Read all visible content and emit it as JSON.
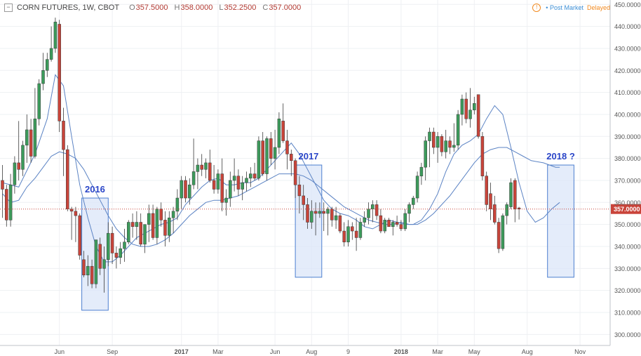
{
  "header": {
    "collapse_symbol": "−",
    "symbol": "CORN FUTURES, 1W, CBOT",
    "open_key": "O",
    "open": "357.5000",
    "high_key": "H",
    "high": "358.0000",
    "low_key": "L",
    "low": "352.2500",
    "close_key": "C",
    "close": "357.0000"
  },
  "status": {
    "info_icon": "alert-circle-icon",
    "info_symbol": "!",
    "post_market": "• Post Market",
    "delayed": "Delayed"
  },
  "colors": {
    "up": "#3c9b5b",
    "down": "#c9443a",
    "ma_line": "#5b83c4",
    "box_fill": "#dbe6f8",
    "box_border": "#4c7fd0",
    "price_tag": "#c9443a",
    "annotation": "#2a45c8"
  },
  "chart_data": {
    "type": "candlestick",
    "ylim": [
      295,
      452
    ],
    "y_ticks": [
      "450.0000",
      "440.0000",
      "430.0000",
      "420.0000",
      "410.0000",
      "400.0000",
      "390.0000",
      "380.0000",
      "370.0000",
      "360.0000",
      "350.0000",
      "340.0000",
      "330.0000",
      "320.0000",
      "310.0000",
      "300.0000"
    ],
    "x_tick_labels": [
      {
        "label": "Jun",
        "week": 14,
        "bold": false
      },
      {
        "label": "Sep",
        "week": 27,
        "bold": false
      },
      {
        "label": "2017",
        "week": 44,
        "bold": true
      },
      {
        "label": "Mar",
        "week": 53,
        "bold": false
      },
      {
        "label": "Jun",
        "week": 67,
        "bold": false
      },
      {
        "label": "Aug",
        "week": 76,
        "bold": false
      },
      {
        "label": "9",
        "week": 85,
        "bold": false
      },
      {
        "label": "2018",
        "week": 98,
        "bold": true
      },
      {
        "label": "Mar",
        "week": 107,
        "bold": false
      },
      {
        "label": "May",
        "week": 116,
        "bold": false
      },
      {
        "label": "Aug",
        "week": 129,
        "bold": false
      },
      {
        "label": "Nov",
        "week": 142,
        "bold": false
      }
    ],
    "last_price": "357.0000",
    "last_price_value": 357,
    "candles": [
      {
        "o": 370,
        "h": 377,
        "l": 353,
        "c": 366
      },
      {
        "o": 366,
        "h": 368,
        "l": 349,
        "c": 352
      },
      {
        "o": 352,
        "h": 373,
        "l": 349,
        "c": 368
      },
      {
        "o": 368,
        "h": 381,
        "l": 364,
        "c": 378
      },
      {
        "o": 378,
        "h": 397,
        "l": 370,
        "c": 375
      },
      {
        "o": 375,
        "h": 388,
        "l": 372,
        "c": 386
      },
      {
        "o": 386,
        "h": 400,
        "l": 378,
        "c": 393
      },
      {
        "o": 393,
        "h": 398,
        "l": 378,
        "c": 381
      },
      {
        "o": 381,
        "h": 412,
        "l": 380,
        "c": 398
      },
      {
        "o": 398,
        "h": 416,
        "l": 395,
        "c": 414
      },
      {
        "o": 414,
        "h": 428,
        "l": 411,
        "c": 420
      },
      {
        "o": 420,
        "h": 428,
        "l": 417,
        "c": 425
      },
      {
        "o": 425,
        "h": 440,
        "l": 424,
        "c": 430
      },
      {
        "o": 430,
        "h": 444,
        "l": 428,
        "c": 442
      },
      {
        "o": 441,
        "h": 443,
        "l": 392,
        "c": 397
      },
      {
        "o": 397,
        "h": 403,
        "l": 372,
        "c": 384
      },
      {
        "o": 384,
        "h": 386,
        "l": 356,
        "c": 357
      },
      {
        "o": 357,
        "h": 358,
        "l": 343,
        "c": 356
      },
      {
        "o": 356,
        "h": 358,
        "l": 342,
        "c": 354
      },
      {
        "o": 354,
        "h": 355,
        "l": 334,
        "c": 336
      },
      {
        "o": 334,
        "h": 338,
        "l": 326,
        "c": 327
      },
      {
        "o": 327,
        "h": 336,
        "l": 322,
        "c": 331
      },
      {
        "o": 331,
        "h": 334,
        "l": 321,
        "c": 323
      },
      {
        "o": 323,
        "h": 343,
        "l": 321,
        "c": 343
      },
      {
        "o": 341,
        "h": 344,
        "l": 327,
        "c": 330
      },
      {
        "o": 330,
        "h": 340,
        "l": 319,
        "c": 334
      },
      {
        "o": 334,
        "h": 351,
        "l": 331,
        "c": 346
      },
      {
        "o": 346,
        "h": 349,
        "l": 332,
        "c": 337
      },
      {
        "o": 337,
        "h": 340,
        "l": 330,
        "c": 335
      },
      {
        "o": 335,
        "h": 342,
        "l": 332,
        "c": 339
      },
      {
        "o": 339,
        "h": 348,
        "l": 333,
        "c": 342
      },
      {
        "o": 342,
        "h": 352,
        "l": 341,
        "c": 351
      },
      {
        "o": 351,
        "h": 355,
        "l": 344,
        "c": 349
      },
      {
        "o": 349,
        "h": 356,
        "l": 343,
        "c": 351
      },
      {
        "o": 351,
        "h": 355,
        "l": 340,
        "c": 341
      },
      {
        "o": 341,
        "h": 350,
        "l": 337,
        "c": 350
      },
      {
        "o": 350,
        "h": 359,
        "l": 342,
        "c": 355
      },
      {
        "o": 355,
        "h": 359,
        "l": 343,
        "c": 344
      },
      {
        "o": 344,
        "h": 358,
        "l": 341,
        "c": 357
      },
      {
        "o": 357,
        "h": 360,
        "l": 349,
        "c": 352
      },
      {
        "o": 352,
        "h": 356,
        "l": 340,
        "c": 345
      },
      {
        "o": 345,
        "h": 356,
        "l": 342,
        "c": 353
      },
      {
        "o": 353,
        "h": 358,
        "l": 346,
        "c": 356
      },
      {
        "o": 356,
        "h": 366,
        "l": 352,
        "c": 362
      },
      {
        "o": 362,
        "h": 372,
        "l": 357,
        "c": 370
      },
      {
        "o": 370,
        "h": 372,
        "l": 360,
        "c": 362
      },
      {
        "o": 362,
        "h": 371,
        "l": 359,
        "c": 368
      },
      {
        "o": 368,
        "h": 389,
        "l": 366,
        "c": 374
      },
      {
        "o": 374,
        "h": 380,
        "l": 366,
        "c": 377
      },
      {
        "o": 377,
        "h": 382,
        "l": 372,
        "c": 375
      },
      {
        "o": 375,
        "h": 380,
        "l": 371,
        "c": 378
      },
      {
        "o": 378,
        "h": 384,
        "l": 369,
        "c": 370
      },
      {
        "o": 370,
        "h": 377,
        "l": 364,
        "c": 366
      },
      {
        "o": 366,
        "h": 375,
        "l": 364,
        "c": 373
      },
      {
        "o": 373,
        "h": 380,
        "l": 356,
        "c": 360
      },
      {
        "o": 360,
        "h": 366,
        "l": 354,
        "c": 362
      },
      {
        "o": 362,
        "h": 374,
        "l": 358,
        "c": 370
      },
      {
        "o": 370,
        "h": 380,
        "l": 365,
        "c": 372
      },
      {
        "o": 372,
        "h": 375,
        "l": 363,
        "c": 366
      },
      {
        "o": 366,
        "h": 372,
        "l": 361,
        "c": 369
      },
      {
        "o": 369,
        "h": 374,
        "l": 365,
        "c": 371
      },
      {
        "o": 371,
        "h": 376,
        "l": 367,
        "c": 373
      },
      {
        "o": 373,
        "h": 378,
        "l": 370,
        "c": 371
      },
      {
        "o": 371,
        "h": 390,
        "l": 370,
        "c": 388
      },
      {
        "o": 388,
        "h": 392,
        "l": 372,
        "c": 373
      },
      {
        "o": 373,
        "h": 390,
        "l": 370,
        "c": 389
      },
      {
        "o": 389,
        "h": 392,
        "l": 377,
        "c": 380
      },
      {
        "o": 380,
        "h": 393,
        "l": 375,
        "c": 385
      },
      {
        "o": 385,
        "h": 401,
        "l": 382,
        "c": 398
      },
      {
        "o": 397,
        "h": 405,
        "l": 387,
        "c": 388
      },
      {
        "o": 388,
        "h": 393,
        "l": 375,
        "c": 382
      },
      {
        "o": 382,
        "h": 384,
        "l": 372,
        "c": 379
      },
      {
        "o": 379,
        "h": 380,
        "l": 362,
        "c": 368
      },
      {
        "o": 368,
        "h": 372,
        "l": 355,
        "c": 363
      },
      {
        "o": 363,
        "h": 368,
        "l": 352,
        "c": 359
      },
      {
        "o": 359,
        "h": 362,
        "l": 348,
        "c": 351
      },
      {
        "o": 351,
        "h": 361,
        "l": 348,
        "c": 356
      },
      {
        "o": 356,
        "h": 360,
        "l": 345,
        "c": 355
      },
      {
        "o": 355,
        "h": 360,
        "l": 353,
        "c": 356
      },
      {
        "o": 356,
        "h": 360,
        "l": 347,
        "c": 355
      },
      {
        "o": 355,
        "h": 358,
        "l": 345,
        "c": 357
      },
      {
        "o": 357,
        "h": 358,
        "l": 349,
        "c": 352
      },
      {
        "o": 352,
        "h": 358,
        "l": 348,
        "c": 354
      },
      {
        "o": 354,
        "h": 355,
        "l": 346,
        "c": 347
      },
      {
        "o": 347,
        "h": 351,
        "l": 340,
        "c": 342
      },
      {
        "o": 342,
        "h": 352,
        "l": 340,
        "c": 349
      },
      {
        "o": 349,
        "h": 351,
        "l": 343,
        "c": 347
      },
      {
        "o": 347,
        "h": 353,
        "l": 338,
        "c": 344
      },
      {
        "o": 344,
        "h": 353,
        "l": 343,
        "c": 351
      },
      {
        "o": 351,
        "h": 356,
        "l": 349,
        "c": 353
      },
      {
        "o": 353,
        "h": 360,
        "l": 350,
        "c": 357
      },
      {
        "o": 357,
        "h": 361,
        "l": 351,
        "c": 359
      },
      {
        "o": 359,
        "h": 361,
        "l": 352,
        "c": 354
      },
      {
        "o": 354,
        "h": 357,
        "l": 346,
        "c": 347
      },
      {
        "o": 347,
        "h": 353,
        "l": 346,
        "c": 352
      },
      {
        "o": 352,
        "h": 353,
        "l": 349,
        "c": 349
      },
      {
        "o": 349,
        "h": 352,
        "l": 345,
        "c": 351
      },
      {
        "o": 351,
        "h": 354,
        "l": 349,
        "c": 350
      },
      {
        "o": 350,
        "h": 352,
        "l": 347,
        "c": 348
      },
      {
        "o": 348,
        "h": 357,
        "l": 347,
        "c": 355
      },
      {
        "o": 355,
        "h": 360,
        "l": 351,
        "c": 359
      },
      {
        "o": 359,
        "h": 363,
        "l": 357,
        "c": 362
      },
      {
        "o": 362,
        "h": 374,
        "l": 360,
        "c": 372
      },
      {
        "o": 372,
        "h": 378,
        "l": 368,
        "c": 376
      },
      {
        "o": 376,
        "h": 390,
        "l": 370,
        "c": 388
      },
      {
        "o": 388,
        "h": 394,
        "l": 376,
        "c": 392
      },
      {
        "o": 392,
        "h": 394,
        "l": 382,
        "c": 385
      },
      {
        "o": 385,
        "h": 392,
        "l": 378,
        "c": 390
      },
      {
        "o": 390,
        "h": 391,
        "l": 381,
        "c": 383
      },
      {
        "o": 383,
        "h": 393,
        "l": 380,
        "c": 388
      },
      {
        "o": 388,
        "h": 390,
        "l": 382,
        "c": 385
      },
      {
        "o": 385,
        "h": 396,
        "l": 383,
        "c": 386
      },
      {
        "o": 386,
        "h": 402,
        "l": 384,
        "c": 400
      },
      {
        "o": 400,
        "h": 409,
        "l": 395,
        "c": 407
      },
      {
        "o": 407,
        "h": 410,
        "l": 396,
        "c": 398
      },
      {
        "o": 398,
        "h": 412,
        "l": 394,
        "c": 402
      },
      {
        "o": 402,
        "h": 408,
        "l": 400,
        "c": 405
      },
      {
        "o": 409,
        "h": 409,
        "l": 389,
        "c": 390
      },
      {
        "o": 390,
        "h": 392,
        "l": 370,
        "c": 372
      },
      {
        "o": 372,
        "h": 374,
        "l": 356,
        "c": 359
      },
      {
        "o": 364,
        "h": 369,
        "l": 352,
        "c": 357
      },
      {
        "o": 359,
        "h": 363,
        "l": 350,
        "c": 351
      },
      {
        "o": 351,
        "h": 353,
        "l": 337,
        "c": 339
      },
      {
        "o": 339,
        "h": 355,
        "l": 338,
        "c": 354
      },
      {
        "o": 354,
        "h": 360,
        "l": 350,
        "c": 359
      },
      {
        "o": 358,
        "h": 371,
        "l": 357,
        "c": 369
      },
      {
        "o": 370,
        "h": 371,
        "l": 351,
        "c": 357
      },
      {
        "o": 357.5,
        "h": 358,
        "l": 352.25,
        "c": 357
      }
    ],
    "ma_short": [
      [
        0,
        369
      ],
      [
        4,
        367
      ],
      [
        8,
        382
      ],
      [
        11,
        398
      ],
      [
        13,
        418
      ],
      [
        15,
        413
      ],
      [
        17,
        390
      ],
      [
        19,
        368
      ],
      [
        21,
        353
      ],
      [
        23,
        340
      ],
      [
        25,
        333
      ],
      [
        27,
        333
      ],
      [
        29,
        336
      ],
      [
        31,
        340
      ],
      [
        33,
        344
      ],
      [
        35,
        346
      ],
      [
        37,
        348
      ],
      [
        39,
        350
      ],
      [
        41,
        351
      ],
      [
        43,
        353
      ],
      [
        45,
        359
      ],
      [
        47,
        363
      ],
      [
        49,
        367
      ],
      [
        51,
        370
      ],
      [
        53,
        371
      ],
      [
        55,
        368
      ],
      [
        57,
        368
      ],
      [
        59,
        369
      ],
      [
        61,
        369
      ],
      [
        63,
        371
      ],
      [
        65,
        375
      ],
      [
        67,
        379
      ],
      [
        69,
        383
      ],
      [
        71,
        387
      ],
      [
        73,
        382
      ],
      [
        75,
        375
      ],
      [
        77,
        368
      ],
      [
        79,
        361
      ],
      [
        81,
        357
      ],
      [
        83,
        355
      ],
      [
        85,
        354
      ],
      [
        87,
        352
      ],
      [
        89,
        349
      ],
      [
        91,
        348
      ],
      [
        93,
        350
      ],
      [
        95,
        352
      ],
      [
        97,
        351
      ],
      [
        99,
        350
      ],
      [
        101,
        350
      ],
      [
        103,
        352
      ],
      [
        105,
        357
      ],
      [
        107,
        364
      ],
      [
        109,
        374
      ],
      [
        111,
        382
      ],
      [
        113,
        386
      ],
      [
        115,
        388
      ],
      [
        117,
        391
      ],
      [
        119,
        398
      ],
      [
        121,
        404
      ],
      [
        123,
        400
      ],
      [
        125,
        385
      ],
      [
        127,
        369
      ],
      [
        129,
        356
      ],
      [
        131,
        351
      ],
      [
        133,
        353
      ],
      [
        135,
        357
      ],
      [
        137,
        360
      ]
    ],
    "ma_long": [
      [
        0,
        364
      ],
      [
        2,
        360
      ],
      [
        4,
        361
      ],
      [
        6,
        367
      ],
      [
        8,
        371
      ],
      [
        10,
        376
      ],
      [
        12,
        381
      ],
      [
        14,
        383
      ],
      [
        16,
        382
      ],
      [
        18,
        380
      ],
      [
        20,
        375
      ],
      [
        22,
        368
      ],
      [
        24,
        361
      ],
      [
        26,
        354
      ],
      [
        28,
        348
      ],
      [
        30,
        344
      ],
      [
        32,
        341
      ],
      [
        34,
        340
      ],
      [
        36,
        340
      ],
      [
        38,
        341
      ],
      [
        40,
        343
      ],
      [
        42,
        346
      ],
      [
        44,
        350
      ],
      [
        46,
        354
      ],
      [
        48,
        357
      ],
      [
        50,
        360
      ],
      [
        52,
        361
      ],
      [
        54,
        361
      ],
      [
        56,
        362
      ],
      [
        58,
        363
      ],
      [
        60,
        365
      ],
      [
        62,
        367
      ],
      [
        64,
        369
      ],
      [
        66,
        371
      ],
      [
        68,
        373
      ],
      [
        70,
        373
      ],
      [
        72,
        373
      ],
      [
        74,
        372
      ],
      [
        76,
        370
      ],
      [
        78,
        367
      ],
      [
        80,
        364
      ],
      [
        82,
        361
      ],
      [
        84,
        358
      ],
      [
        86,
        356
      ],
      [
        88,
        354
      ],
      [
        90,
        352
      ],
      [
        92,
        351
      ],
      [
        94,
        350
      ],
      [
        96,
        350
      ],
      [
        98,
        351
      ],
      [
        100,
        350
      ],
      [
        102,
        350
      ],
      [
        104,
        352
      ],
      [
        106,
        355
      ],
      [
        108,
        359
      ],
      [
        110,
        363
      ],
      [
        112,
        368
      ],
      [
        114,
        373
      ],
      [
        116,
        378
      ],
      [
        118,
        382
      ],
      [
        120,
        384
      ],
      [
        122,
        385
      ],
      [
        124,
        385
      ],
      [
        126,
        383
      ],
      [
        128,
        381
      ],
      [
        130,
        379
      ],
      [
        133,
        378
      ],
      [
        136,
        376
      ],
      [
        137,
        376
      ]
    ],
    "boxes": [
      {
        "label": "2016",
        "x_from": 19.5,
        "x_to": 26.0,
        "y_from": 311,
        "y_to": 362
      },
      {
        "label": "2017",
        "x_from": 72.0,
        "x_to": 78.5,
        "y_from": 326,
        "y_to": 377
      },
      {
        "label": "2018 ?",
        "x_from": 134.0,
        "x_to": 140.5,
        "y_from": 326,
        "y_to": 377
      }
    ]
  }
}
